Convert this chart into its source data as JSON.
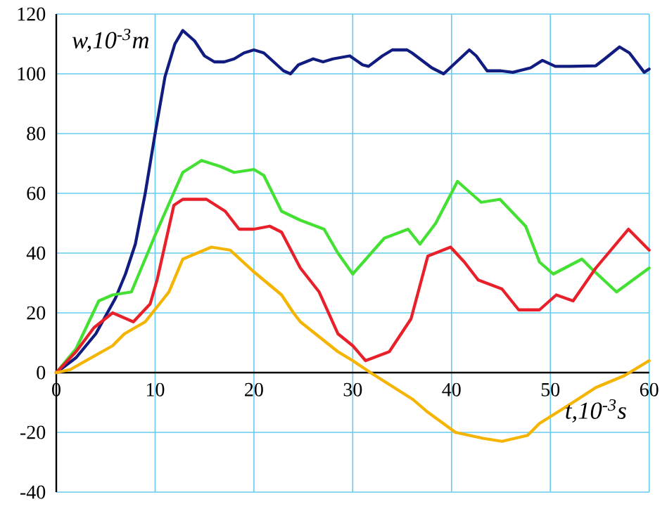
{
  "chart_data": {
    "type": "line",
    "xlabel": "t,10$^{-3}$s",
    "ylabel": "w,10$^{-3}$m",
    "xlim": [
      0,
      60
    ],
    "ylim": [
      -40,
      120
    ],
    "xticks": [
      0,
      10,
      20,
      30,
      40,
      50,
      60
    ],
    "yticks": [
      -40,
      -20,
      0,
      20,
      40,
      60,
      80,
      100,
      120
    ],
    "grid": true,
    "series": [
      {
        "color": "#101c80",
        "x": [
          0,
          2,
          4,
          5,
          6,
          7,
          8,
          9,
          10,
          11,
          12,
          12.8,
          14,
          15,
          16,
          17,
          18,
          19,
          20,
          21,
          22,
          23,
          23.7,
          24.5,
          26,
          27,
          28,
          29.7,
          31,
          31.6,
          33,
          34,
          35.5,
          36,
          38,
          39.2,
          40.5,
          41.8,
          42.5,
          43.6,
          45,
          46.2,
          48,
          49.2,
          50.5,
          52,
          54.6,
          55.5,
          57,
          58,
          59.5,
          60
        ],
        "values": [
          0,
          5,
          13,
          19,
          25,
          33,
          43,
          60,
          80,
          99,
          110,
          114.5,
          111,
          106,
          104,
          104,
          105,
          107,
          108,
          107,
          104,
          101,
          100,
          103,
          105,
          104,
          105,
          106,
          103,
          102.5,
          106,
          108,
          108,
          107,
          102,
          100,
          104,
          108,
          106,
          101,
          101,
          100.5,
          102,
          104.5,
          102.5,
          102.5,
          102.7,
          105,
          109,
          107,
          100.5,
          101.6
        ]
      },
      {
        "color": "#44e033",
        "x": [
          0,
          2,
          4.3,
          5.7,
          7.6,
          9.5,
          10,
          12.8,
          14.7,
          16.6,
          18,
          20,
          21,
          22.8,
          24.7,
          27.1,
          28.5,
          30,
          33.2,
          35.6,
          36.8,
          38.4,
          40.6,
          43,
          44.9,
          47.5,
          48.9,
          50.3,
          53.2,
          54.1,
          56.7,
          60
        ],
        "values": [
          0,
          8,
          24,
          26,
          27,
          42,
          46,
          67,
          71,
          69,
          67,
          68,
          66,
          54,
          51,
          48,
          40,
          33,
          45,
          48,
          43,
          50,
          64,
          57,
          58,
          49,
          37,
          33,
          38,
          35,
          27,
          35
        ]
      },
      {
        "color": "#e8202a",
        "x": [
          0,
          2,
          3.8,
          5.7,
          7.8,
          9.5,
          10.2,
          11.9,
          12.8,
          15.2,
          17.1,
          18.5,
          20,
          21.6,
          22.8,
          24.7,
          26.6,
          28.5,
          30,
          31.3,
          33.7,
          35.9,
          37.6,
          39.9,
          41.3,
          42.7,
          45.1,
          46.8,
          48.9,
          50.6,
          52.3,
          54.6,
          57.9,
          60
        ],
        "values": [
          0,
          7,
          15,
          20,
          17,
          23,
          31,
          56,
          58,
          58,
          54,
          48,
          48,
          49,
          47,
          35,
          27,
          13,
          9,
          4,
          7,
          18,
          39,
          42,
          37,
          31,
          28,
          21,
          21,
          26,
          24,
          35,
          48,
          41
        ]
      },
      {
        "color": "#f5b400",
        "x": [
          0,
          1.4,
          5.7,
          6.9,
          9,
          11.4,
          12.8,
          15.7,
          17.6,
          19.9,
          22.8,
          24,
          24.7,
          28.5,
          30,
          31.8,
          36.1,
          37.5,
          40.4,
          43.2,
          45.1,
          47.7,
          48.9,
          51.8,
          54.6,
          57.5,
          60
        ],
        "values": [
          0,
          1,
          9,
          13,
          17,
          27,
          38,
          42,
          41,
          34,
          26,
          20,
          17,
          7,
          4,
          0,
          -9,
          -13,
          -20,
          -22,
          -23,
          -21,
          -17,
          -11,
          -5,
          -1,
          4
        ]
      }
    ]
  }
}
